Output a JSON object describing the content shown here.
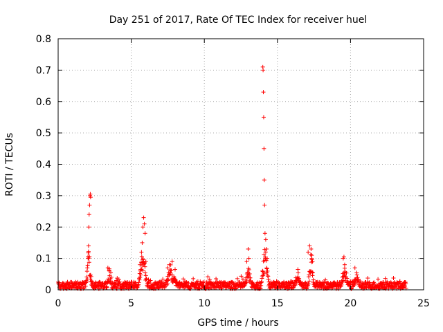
{
  "chart_data": {
    "type": "scatter",
    "title": "Day 251 of 2017, Rate Of TEC Index for receiver huel",
    "xlabel": "GPS time / hours",
    "ylabel": "ROTI / TECUs",
    "xlim": [
      0,
      25
    ],
    "ylim": [
      0,
      0.8
    ],
    "xticks": [
      "0",
      "5",
      "10",
      "15",
      "20",
      "25"
    ],
    "yticks": [
      "0",
      "0.1",
      "0.2",
      "0.3",
      "0.4",
      "0.5",
      "0.6",
      "0.7",
      "0.8"
    ],
    "grid": true,
    "marker": "plus",
    "color": "#ff0000",
    "highlights": {
      "x": [
        2.0,
        2.05,
        2.08,
        2.1,
        2.12,
        2.15,
        2.18,
        2.2,
        2.22,
        3.4,
        3.5,
        3.6,
        5.6,
        5.7,
        5.75,
        5.8,
        5.85,
        5.9,
        5.95,
        6.0,
        7.5,
        7.6,
        7.8,
        8.0,
        12.9,
        13.0,
        13.05,
        14.0,
        14.02,
        14.04,
        14.06,
        14.08,
        14.1,
        14.12,
        14.15,
        14.2,
        14.25,
        14.3,
        16.4,
        17.1,
        17.2,
        17.3,
        17.35,
        17.4,
        19.5,
        19.55,
        19.6,
        20.3
      ],
      "y": [
        0.07,
        0.1,
        0.14,
        0.2,
        0.24,
        0.27,
        0.3,
        0.305,
        0.295,
        0.07,
        0.06,
        0.055,
        0.08,
        0.12,
        0.15,
        0.2,
        0.23,
        0.21,
        0.18,
        0.09,
        0.07,
        0.08,
        0.09,
        0.065,
        0.09,
        0.13,
        0.1,
        0.71,
        0.7,
        0.63,
        0.55,
        0.45,
        0.35,
        0.27,
        0.18,
        0.16,
        0.13,
        0.1,
        0.065,
        0.12,
        0.14,
        0.13,
        0.11,
        0.09,
        0.1,
        0.105,
        0.08,
        0.07
      ]
    },
    "baseline": {
      "x_start": 0.0,
      "x_end": 23.8,
      "x_step": 0.02,
      "y_min": 0.003,
      "y_max": 0.025
    },
    "bursts": [
      {
        "center": 2.1,
        "width": 0.25,
        "peak": 0.14
      },
      {
        "center": 3.5,
        "width": 0.2,
        "peak": 0.07
      },
      {
        "center": 5.8,
        "width": 0.35,
        "peak": 0.15
      },
      {
        "center": 7.7,
        "width": 0.5,
        "peak": 0.08
      },
      {
        "center": 13.0,
        "width": 0.3,
        "peak": 0.08
      },
      {
        "center": 14.15,
        "width": 0.3,
        "peak": 0.16
      },
      {
        "center": 16.4,
        "width": 0.4,
        "peak": 0.06
      },
      {
        "center": 17.3,
        "width": 0.25,
        "peak": 0.13
      },
      {
        "center": 19.6,
        "width": 0.3,
        "peak": 0.09
      },
      {
        "center": 20.4,
        "width": 0.3,
        "peak": 0.06
      }
    ]
  }
}
